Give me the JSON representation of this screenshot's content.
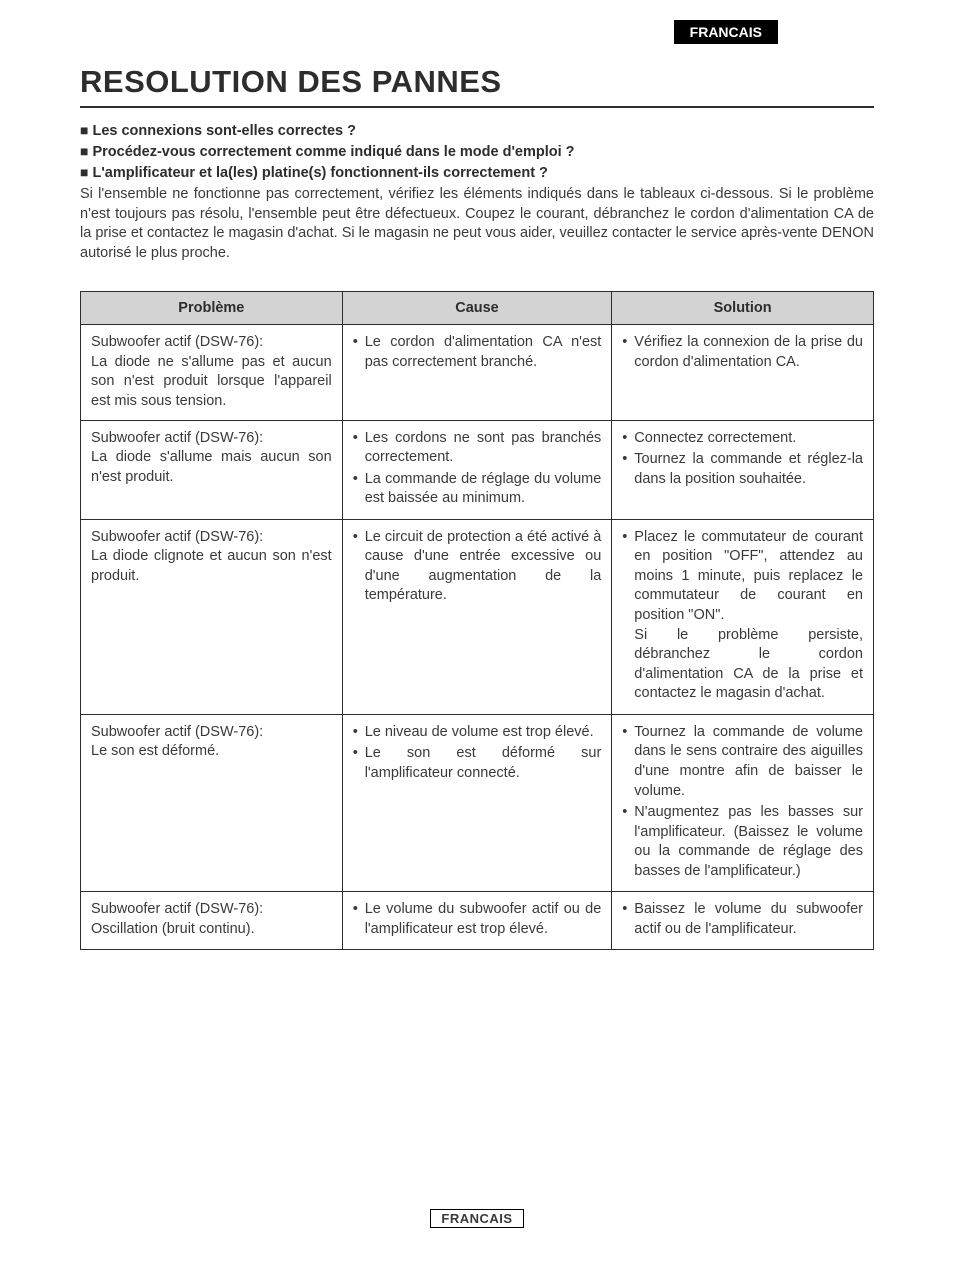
{
  "lang_badge": "FRANCAIS",
  "title": "RESOLUTION DES PANNES",
  "checks": [
    "Les connexions sont-elles correctes ?",
    "Procédez-vous correctement comme indiqué dans le mode d'emploi ?",
    "L'amplificateur et la(les) platine(s) fonctionnent-ils correctement ?"
  ],
  "intro": "Si l'ensemble ne fonctionne pas correctement, vérifiez les éléments indiqués dans le tableaux ci-dessous. Si le problème n'est toujours pas résolu, l'ensemble peut être défectueux. Coupez le courant, débranchez le cordon d'alimentation CA de la prise et contactez le magasin d'achat. Si le magasin ne peut vous aider, veuillez contacter le service après-vente DENON autorisé le plus proche.",
  "table": {
    "headers": {
      "problem": "Problème",
      "cause": "Cause",
      "solution": "Solution"
    },
    "rows": [
      {
        "problem": "Subwoofer actif (DSW-76):\nLa diode ne s'allume pas et aucun son n'est produit lorsque l'appareil est mis sous tension.",
        "causes": [
          "Le cordon d'alimentation CA n'est pas correctement branché."
        ],
        "solutions": [
          "Vérifiez la connexion de la prise du cordon d'alimentation CA."
        ]
      },
      {
        "problem": "Subwoofer actif (DSW-76):\nLa diode s'allume mais aucun son n'est produit.",
        "causes": [
          "Les cordons ne sont pas branchés correctement.",
          "La commande de réglage du volume est baissée au minimum."
        ],
        "solutions": [
          "Connectez correctement.",
          "Tournez la commande et réglez-la dans la position souhaitée."
        ]
      },
      {
        "problem": "Subwoofer actif (DSW-76):\nLa diode clignote et aucun son n'est produit.",
        "causes": [
          "Le circuit de protection a été activé à cause d'une entrée excessive ou d'une augmentation de la température."
        ],
        "solutions": [
          "Placez le commutateur de courant en position \"OFF\", attendez au moins 1 minute, puis replacez le commutateur de courant en position \"ON\".\nSi le problème persiste, débranchez le cordon d'alimentation CA de la prise et contactez le magasin d'achat."
        ]
      },
      {
        "problem": "Subwoofer actif (DSW-76):\nLe son est déformé.",
        "causes": [
          "Le niveau de volume est trop élevé.",
          "Le son est déformé sur l'amplificateur connecté."
        ],
        "solutions": [
          "Tournez la commande de volume dans le sens contraire des aiguilles d'une montre afin de baisser le volume.",
          "N'augmentez pas les basses sur l'amplificateur. (Baissez le volume ou la commande de réglage des basses de l'amplificateur.)"
        ]
      },
      {
        "problem": "Subwoofer actif (DSW-76):\nOscillation (bruit continu).",
        "causes": [
          "Le volume du subwoofer actif ou de l'amplificateur est trop élevé."
        ],
        "solutions": [
          "Baissez le volume du subwoofer actif ou de l'amplificateur."
        ]
      }
    ]
  },
  "footer_lang": "FRANCAIS"
}
